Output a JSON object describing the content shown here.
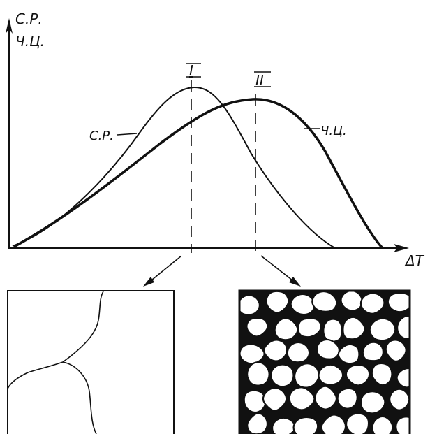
{
  "axes": {
    "y_label_line1": "С.Р.",
    "y_label_line2": "Ч.Ц.",
    "x_label": "ΔT"
  },
  "curves": {
    "sr_label": "С.Р.",
    "chc_label": "Ч.Ц."
  },
  "markers": {
    "first": "I",
    "second": "II"
  },
  "micrographs": {
    "left": "coarse-grain structure",
    "right": "fine-grain structure"
  }
}
